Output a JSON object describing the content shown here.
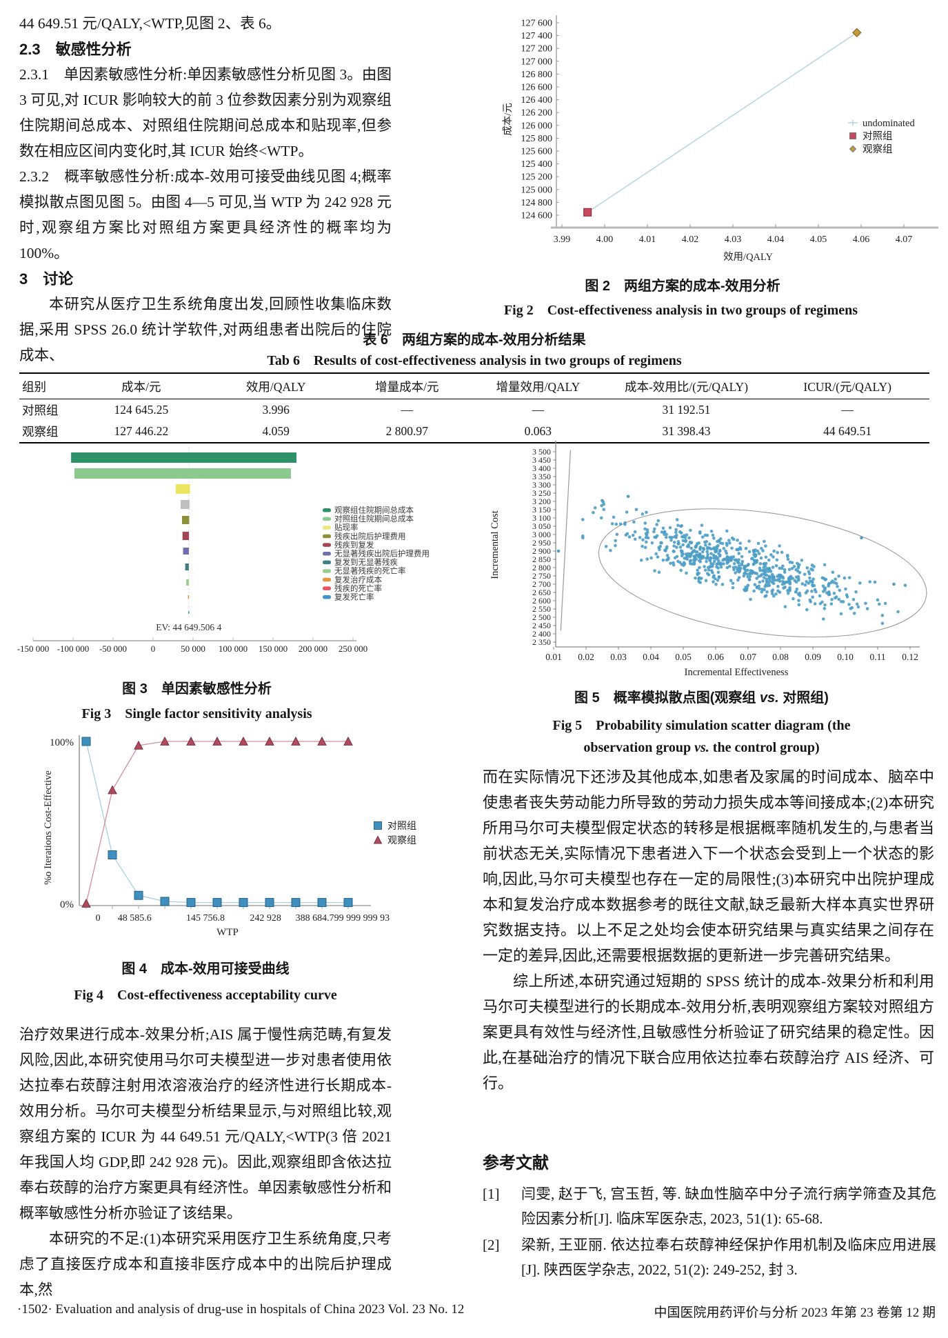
{
  "page": {
    "footer_left": "·1502·  Evaluation and analysis of drug-use in hospitals of China 2023 Vol. 23 No. 12",
    "footer_right": "中国医院用药评价与分析  2023 年第 23 卷第 12 期"
  },
  "left_top": {
    "line1": "44 649.51 元/QALY,<WTP,见图 2、表 6。",
    "h23": "2.3　敏感性分析",
    "p231": "2.3.1　单因素敏感性分析:单因素敏感性分析见图 3。由图 3 可见,对 ICUR 影响较大的前 3 位参数因素分别为观察组住院期间总成本、对照组住院期间总成本和贴现率,但参数在相应区间内变化时,其 ICUR 始终<WTP。",
    "p232": "2.3.2　概率敏感性分析:成本-效用可接受曲线见图 4;概率模拟散点图见图 5。由图 4—5 可见,当 WTP 为 242 928 元时,观察组方案比对照组方案更具经济性的概率均为 100%。",
    "h3": "3　讨论",
    "p3": "本研究从医疗卫生系统角度出发,回顾性收集临床数据,采用 SPSS 26.0 统计学软件,对两组患者出院后的住院成本、"
  },
  "table6": {
    "caption_zh": "表 6　两组方案的成本-效用分析结果",
    "caption_en": "Tab 6　Results of cost-effectiveness analysis in two groups of regimens",
    "headers": [
      "组别",
      "成本/元",
      "效用/QALY",
      "增量成本/元",
      "增量效用/QALY",
      "成本-效用比/(元/QALY)",
      "ICUR/(元/QALY)"
    ],
    "rows": [
      [
        "对照组",
        "124 645.25",
        "3.996",
        "—",
        "—",
        "31 192.51",
        "—"
      ],
      [
        "观察组",
        "127 446.22",
        "4.059",
        "2 800.97",
        "0.063",
        "31 398.43",
        "44 649.51"
      ]
    ]
  },
  "left_bottom": {
    "p1": "治疗效果进行成本-效果分析;AIS 属于慢性病范畴,有复发风险,因此,本研究使用马尔可夫模型进一步对患者使用依达拉奉右莰醇注射用浓溶液治疗的经济性进行长期成本-效用分析。马尔可夫模型分析结果显示,与对照组比较,观察组方案的 ICUR 为 44 649.51 元/QALY,<WTP(3 倍 2021 年我国人均 GDP,即 242 928 元)。因此,观察组即含依达拉奉右莰醇的治疗方案更具有经济性。单因素敏感性分析和概率敏感性分析亦验证了该结果。",
    "p2": "本研究的不足:(1)本研究采用医疗卫生系统角度,只考虑了直接医疗成本和直接非医疗成本中的出院后护理成本,然"
  },
  "right_col": {
    "p1": "而在实际情况下还涉及其他成本,如患者及家属的时间成本、脑卒中使患者丧失劳动能力所导致的劳动力损失成本等间接成本;(2)本研究所用马尔可夫模型假定状态的转移是根据概率随机发生的,与患者当前状态无关,实际情况下患者进入下一个状态会受到上一个状态的影响,因此,马尔可夫模型也存在一定的局限性;(3)本研究中出院护理成本和复发治疗成本数据参考的既往文献,缺乏最新大样本真实世界研究数据支持。以上不足之处均会使本研究结果与真实结果之间存在一定的差异,因此,还需要根据数据的更新进一步完善研究结果。",
    "p2": "综上所述,本研究通过短期的 SPSS 统计的成本-效果分析和利用马尔可夫模型进行的长期成本-效用分析,表明观察组方案较对照组方案更具有效性与经济性,且敏感性分析验证了研究结果的稳定性。因此,在基础治疗的情况下联合应用依达拉奉右莰醇治疗 AIS 经济、可行。"
  },
  "refs": {
    "heading": "参考文献",
    "items": [
      {
        "label": "[1]",
        "text": "闫雯, 赵于飞, 宫玉哲, 等. 缺血性脑卒中分子流行病学筛查及其危险因素分析[J]. 临床军医杂志, 2023, 51(1): 65-68."
      },
      {
        "label": "[2]",
        "text": "梁新, 王亚丽. 依达拉奉右莰醇神经保护作用机制及临床应用进展[J]. 陕西医学杂志, 2022, 51(2): 249-252, 封 3."
      }
    ]
  },
  "chart_data": [
    {
      "id": "fig2",
      "type": "line",
      "title_zh": "图 2　两组方案的成本-效用分析",
      "title_en": "Fig 2　Cost-effectiveness analysis in two groups of regimens",
      "xlabel": "效用/QALY",
      "ylabel": "成本/元",
      "xlim": [
        3.99,
        4.07
      ],
      "xstep": 0.01,
      "ylim": [
        124600,
        127600
      ],
      "ystep": 200,
      "line_color": "#b9d7e5",
      "points": [
        {
          "name": "对照组",
          "x": 3.996,
          "y": 124645.25,
          "marker": "square",
          "color": "#c94a5e",
          "edge": "#7e2436"
        },
        {
          "name": "观察组",
          "x": 4.059,
          "y": 127446.22,
          "marker": "diamond",
          "color": "#c49a3f",
          "edge": "#7a5c16"
        }
      ],
      "legend": [
        {
          "label": "undominated",
          "marker": "plus",
          "color": "#a9cede"
        },
        {
          "label": "对照组",
          "marker": "square",
          "color": "#c94a5e"
        },
        {
          "label": "观察组",
          "marker": "diamond",
          "color": "#c49a3f"
        }
      ]
    },
    {
      "id": "fig3",
      "type": "bar",
      "title_zh": "图 3　单因素敏感性分析",
      "title_en": "Fig 3　Single factor sensitivity analysis",
      "xlim": [
        -150000,
        250000
      ],
      "xstep": 50000,
      "ev": 44649.5064,
      "ev_label": "EV: 44 649.506 4",
      "bars": [
        {
          "label": "观察组住院期间总成本",
          "color": "#2e9268",
          "legend_color": "#2e9268",
          "lo": -102500,
          "hi": 179300
        },
        {
          "label": "对照组住院期间总成本",
          "color": "#8cc98f",
          "legend_color": "#8cc98f",
          "lo": -98300,
          "hi": 172400
        },
        {
          "label": "贴现率",
          "color": "#ebe55f",
          "legend_color": "#ede97a",
          "lo": 28400,
          "hi": 46200
        },
        {
          "label": "残疾出院后护理费用",
          "color": "#bfbfbf",
          "legend_color": "#8f8f39",
          "lo": 34500,
          "hi": 45600
        },
        {
          "label": "残疾到复发",
          "color": "#8f8f39",
          "legend_color": "#a64456",
          "lo": 36200,
          "hi": 45200
        },
        {
          "label": "无显著残疾出院后护理费用",
          "color": "#a64456",
          "legend_color": "#6f6fb0",
          "lo": 36800,
          "hi": 44900
        },
        {
          "label": "复发到无显著残疾",
          "color": "#6f6fb0",
          "legend_color": "#3f7f82",
          "lo": 37500,
          "hi": 44800
        },
        {
          "label": "无显著残疾的死亡率",
          "color": "#3f7f82",
          "legend_color": "#97cf8f",
          "lo": 40200,
          "hi": 44750
        },
        {
          "label": "复发治疗成本",
          "color": "#97cf8f",
          "legend_color": "#e2963f",
          "lo": 41500,
          "hi": 44720
        },
        {
          "label": "残疾的死亡率",
          "color": "#e2963f",
          "legend_color": "#e25566",
          "lo": 43600,
          "hi": 44700
        },
        {
          "label": "复发死亡率",
          "color": "#4193c9",
          "legend_color": "#4193c9",
          "lo": 44000,
          "hi": 44680
        }
      ]
    },
    {
      "id": "fig4",
      "type": "line",
      "title_zh": "图 4　成本-效用可接受曲线",
      "title_en": "Fig 4　Cost-effectiveness acceptability curve",
      "xlabel": "WTP",
      "ylabel": "%o Iterations Cost-Effective",
      "y_tick_labels": [
        "100%",
        "0%"
      ],
      "x_tick_labels": [
        {
          "text": "0",
          "f": 0.067
        },
        {
          "text": "48 585.6",
          "f": 0.198
        },
        {
          "text": "145 756.8",
          "f": 0.452
        },
        {
          "text": "242 928",
          "f": 0.667
        },
        {
          "text": "388 684.799 999 999 93",
          "f": 0.943
        }
      ],
      "series": [
        {
          "name": "对照组",
          "marker": "square",
          "color": "#3f8fbf",
          "edge": "#26628a",
          "line": "#a8cfe3",
          "values": [
            100,
            30,
            5,
            1.3,
            0.6,
            0.6,
            0.6,
            0.6,
            0.6,
            0.6,
            0.6
          ]
        },
        {
          "name": "观察组",
          "marker": "triangle",
          "color": "#b04a5e",
          "edge": "#7c2e3e",
          "line": "#d48f9b",
          "values": [
            0,
            70,
            97.5,
            100,
            100,
            100,
            100,
            100,
            100,
            100,
            100
          ]
        }
      ]
    },
    {
      "id": "fig5",
      "type": "scatter",
      "title_zh_pre": "图 5　概率模拟散点图(观察组 ",
      "title_zh_it": "vs.",
      "title_zh_post": " 对照组)",
      "title_en_line1": "Fig 5　Probability simulation scatter diagram (the",
      "title_en2_pre": "observation group ",
      "title_en2_it": "vs.",
      "title_en2_post": "  the control group)",
      "xlabel": "Incremental Effectiveness",
      "ylabel": "Incremental Cost",
      "xlim": [
        0.01,
        0.12
      ],
      "xstep": 0.01,
      "ylim": [
        2350,
        3500
      ],
      "ystep": 50,
      "point_color": "#4d9dc7",
      "cloud": {
        "count": 680,
        "x_mean": 0.067,
        "x_sd": 0.019,
        "intercept": 3189,
        "slope": -5555,
        "noise_sd": 75,
        "seed": 42
      },
      "outliers": [
        [
          0.0115,
          2900
        ],
        [
          0.025,
          3205
        ],
        [
          0.033,
          3230
        ],
        [
          0.105,
          2980
        ],
        [
          0.115,
          2700
        ]
      ],
      "ellipse": {
        "cx": 0.0745,
        "cy": 2768,
        "rx": 0.051,
        "ry": 365,
        "rot_deg": 8
      },
      "wtp_line": {
        "x1": 0.0122,
        "y1": 2420,
        "x2": 0.0152,
        "y2": 3510
      }
    }
  ]
}
